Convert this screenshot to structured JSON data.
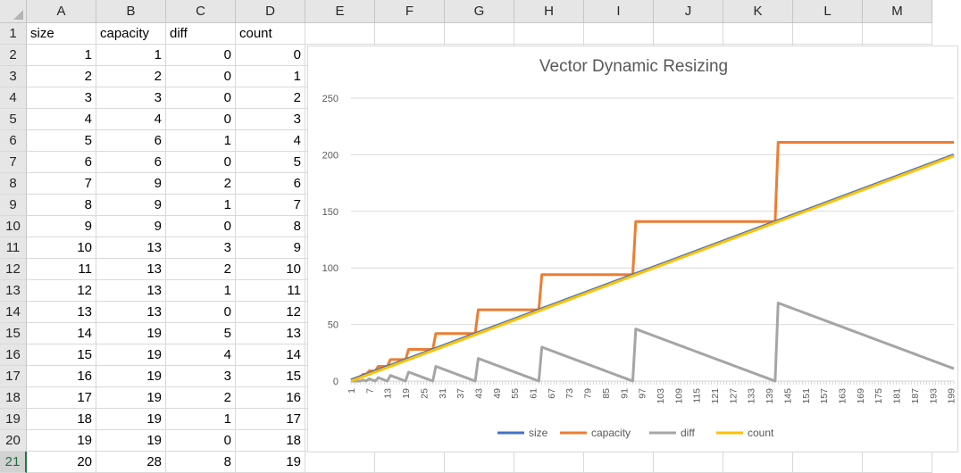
{
  "columns": [
    "A",
    "B",
    "C",
    "D",
    "E",
    "F",
    "G",
    "H",
    "I",
    "J",
    "K",
    "L",
    "M"
  ],
  "rows": [
    "1",
    "2",
    "3",
    "4",
    "5",
    "6",
    "7",
    "8",
    "9",
    "10",
    "11",
    "12",
    "13",
    "14",
    "15",
    "16",
    "17",
    "18",
    "19",
    "20",
    "21"
  ],
  "table": {
    "headers": [
      "size",
      "capacity",
      "diff",
      "count"
    ],
    "values": [
      [
        1,
        1,
        0,
        0
      ],
      [
        2,
        2,
        0,
        1
      ],
      [
        3,
        3,
        0,
        2
      ],
      [
        4,
        4,
        0,
        3
      ],
      [
        5,
        6,
        1,
        4
      ],
      [
        6,
        6,
        0,
        5
      ],
      [
        7,
        9,
        2,
        6
      ],
      [
        8,
        9,
        1,
        7
      ],
      [
        9,
        9,
        0,
        8
      ],
      [
        10,
        13,
        3,
        9
      ],
      [
        11,
        13,
        2,
        10
      ],
      [
        12,
        13,
        1,
        11
      ],
      [
        13,
        13,
        0,
        12
      ],
      [
        14,
        19,
        5,
        13
      ],
      [
        15,
        19,
        4,
        14
      ],
      [
        16,
        19,
        3,
        15
      ],
      [
        17,
        19,
        2,
        16
      ],
      [
        18,
        19,
        1,
        17
      ],
      [
        19,
        19,
        0,
        18
      ],
      [
        20,
        28,
        8,
        19
      ]
    ]
  },
  "chart_data": {
    "type": "line",
    "title": "Vector Dynamic Resizing",
    "ylim": [
      0,
      250
    ],
    "y_ticks": [
      0,
      50,
      100,
      150,
      200,
      250
    ],
    "x_tick_labels": [
      "1",
      "7",
      "13",
      "19",
      "25",
      "31",
      "37",
      "43",
      "49",
      "55",
      "61",
      "67",
      "73",
      "79",
      "85",
      "91",
      "97",
      "103",
      "109",
      "115",
      "121",
      "127",
      "133",
      "139",
      "145",
      "151",
      "157",
      "163",
      "169",
      "175",
      "181",
      "187",
      "193",
      "199"
    ],
    "grid": true,
    "legend_position": "bottom",
    "capacity_steps": [
      [
        1,
        1
      ],
      [
        2,
        2
      ],
      [
        3,
        3
      ],
      [
        4,
        4
      ],
      [
        5,
        6
      ],
      [
        7,
        9
      ],
      [
        10,
        13
      ],
      [
        14,
        19
      ],
      [
        20,
        28
      ],
      [
        29,
        42
      ],
      [
        43,
        63
      ],
      [
        64,
        94
      ],
      [
        95,
        141
      ],
      [
        142,
        211
      ]
    ],
    "series": [
      {
        "name": "size",
        "color": "#4472c4",
        "x_start": 1,
        "x_end": 200,
        "y_start": 1,
        "y_end": 200
      },
      {
        "name": "capacity",
        "color": "#ed7d31"
      },
      {
        "name": "diff",
        "color": "#a5a5a5"
      },
      {
        "name": "count",
        "color": "#ffc000",
        "x_start": 1,
        "x_end": 200,
        "y_start": 0,
        "y_end": 199
      }
    ]
  }
}
